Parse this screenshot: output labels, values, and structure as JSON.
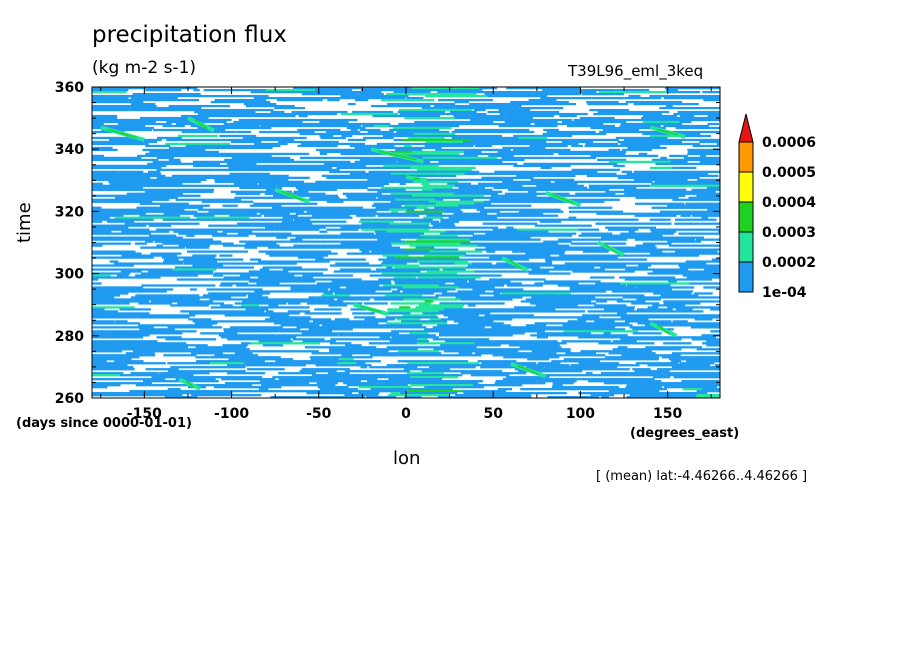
{
  "chart_data": {
    "type": "heatmap",
    "title": "precipitation flux",
    "subtitle": "(kg m-2 s-1)",
    "dataset": "T39L96_eml_3keq",
    "xlabel": "lon",
    "ylabel": "time",
    "x_units": "(degrees_east)",
    "y_units": "(days since 0000-01-01)",
    "footnote": "[ (mean) lat:-4.46266..4.46266 ]",
    "xlim": [
      -180,
      180
    ],
    "ylim": [
      260,
      360
    ],
    "x_ticks": [
      -150,
      -100,
      -50,
      0,
      50,
      100,
      150
    ],
    "y_ticks": [
      260,
      280,
      300,
      320,
      340,
      360
    ],
    "colorbar": {
      "levels": [
        "1e-04",
        "0.0002",
        "0.0003",
        "0.0004",
        "0.0005",
        "0.0006"
      ],
      "colors": [
        "#1e9bf0",
        "#22e69b",
        "#1fd21f",
        "#ffff00",
        "#ff9a00",
        "#e61414"
      ],
      "extend": "max"
    },
    "background_color": "#ffffff"
  }
}
